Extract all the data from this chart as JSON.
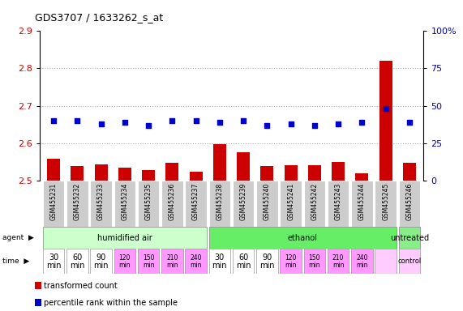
{
  "title": "GDS3707 / 1633262_s_at",
  "samples": [
    "GSM455231",
    "GSM455232",
    "GSM455233",
    "GSM455234",
    "GSM455235",
    "GSM455236",
    "GSM455237",
    "GSM455238",
    "GSM455239",
    "GSM455240",
    "GSM455241",
    "GSM455242",
    "GSM455243",
    "GSM455244",
    "GSM455245",
    "GSM455246"
  ],
  "red_values": [
    2.558,
    2.539,
    2.543,
    2.534,
    2.528,
    2.548,
    2.524,
    2.597,
    2.575,
    2.539,
    2.541,
    2.541,
    2.55,
    2.518,
    2.82,
    2.548
  ],
  "blue_values_pct": [
    40,
    40,
    38,
    39,
    37,
    40,
    40,
    39,
    40,
    37,
    38,
    37,
    38,
    39,
    48,
    39
  ],
  "ylim_left": [
    2.5,
    2.9
  ],
  "ylim_right": [
    0,
    100
  ],
  "yticks_left": [
    2.5,
    2.6,
    2.7,
    2.8,
    2.9
  ],
  "yticks_right": [
    0,
    25,
    50,
    75,
    100
  ],
  "ytick_labels_right": [
    "0",
    "25",
    "50",
    "75",
    "100%"
  ],
  "bar_color": "#cc0000",
  "dot_color": "#0000cc",
  "agent_groups": [
    {
      "label": "humidified air",
      "start": 0,
      "end": 7,
      "color": "#ccffcc"
    },
    {
      "label": "ethanol",
      "start": 7,
      "end": 15,
      "color": "#66ee66"
    },
    {
      "label": "untreated",
      "start": 15,
      "end": 16,
      "color": "#88ee88"
    }
  ],
  "time_bg_white": "#ffffff",
  "time_bg_pink": "#ff99ff",
  "time_bg_control": "#ffccff",
  "legend_items": [
    {
      "color": "#cc0000",
      "label": "transformed count"
    },
    {
      "color": "#0000cc",
      "label": "percentile rank within the sample"
    }
  ],
  "grid_dotted_color": "#aaaaaa",
  "sample_bg_color": "#cccccc",
  "label_color_left": "#cc0000",
  "label_color_right": "#0000cc",
  "spine_color": "#888888"
}
